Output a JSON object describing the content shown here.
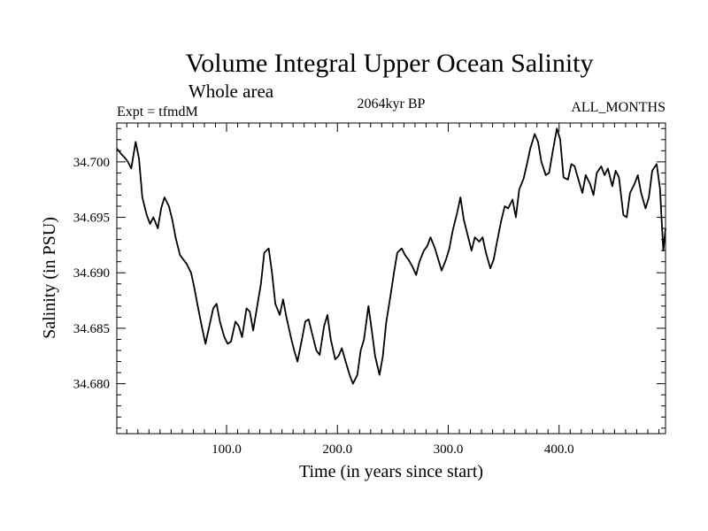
{
  "chart_data": {
    "type": "line",
    "title": "Volume Integral Upper Ocean Salinity",
    "subtitle": "Whole area",
    "left_label": "Expt = tfmdM",
    "center_label": "2064kyr BP",
    "right_label": "ALL_MONTHS",
    "xlabel": "Time (in years since start)",
    "ylabel": "Salinity (in PSU)",
    "xlim": [
      1,
      496
    ],
    "ylim": [
      34.6755,
      34.7035
    ],
    "xticks": [
      100,
      200,
      300,
      400
    ],
    "xtick_labels": [
      "100.0",
      "200.0",
      "300.0",
      "400.0"
    ],
    "yticks": [
      34.68,
      34.685,
      34.69,
      34.695,
      34.7
    ],
    "ytick_labels": [
      "34.680",
      "34.685",
      "34.690",
      "34.695",
      "34.700"
    ],
    "grid": false,
    "series": [
      {
        "name": "salinity",
        "color": "#000000",
        "x": [
          1,
          5,
          8,
          11,
          14,
          18,
          21,
          24,
          28,
          31,
          34,
          38,
          41,
          44,
          48,
          51,
          54,
          58,
          61,
          64,
          68,
          71,
          74,
          78,
          81,
          84,
          88,
          91,
          94,
          98,
          101,
          104,
          108,
          111,
          114,
          118,
          121,
          124,
          128,
          131,
          134,
          138,
          141,
          144,
          148,
          151,
          154,
          158,
          161,
          164,
          168,
          171,
          174,
          178,
          181,
          184,
          188,
          191,
          194,
          198,
          201,
          204,
          208,
          211,
          214,
          218,
          221,
          224,
          228,
          231,
          234,
          238,
          241,
          244,
          248,
          251,
          254,
          258,
          261,
          264,
          268,
          271,
          274,
          278,
          281,
          284,
          288,
          291,
          294,
          298,
          301,
          304,
          308,
          311,
          314,
          318,
          321,
          324,
          328,
          331,
          334,
          338,
          341,
          344,
          348,
          351,
          354,
          358,
          361,
          364,
          368,
          371,
          374,
          378,
          381,
          384,
          388,
          391,
          394,
          398,
          401,
          404,
          408,
          411,
          414,
          418,
          421,
          424,
          428,
          431,
          434,
          438,
          441,
          444,
          448,
          451,
          454,
          458,
          461,
          464,
          468,
          471,
          474,
          478,
          481,
          484,
          488,
          491,
          494,
          496
        ],
        "values": [
          34.7012,
          34.7007,
          34.7004,
          34.7,
          34.6994,
          34.7018,
          34.7003,
          34.6968,
          34.6952,
          34.6944,
          34.695,
          34.694,
          34.6958,
          34.6968,
          34.696,
          34.6948,
          34.6932,
          34.6916,
          34.6912,
          34.6908,
          34.69,
          34.6886,
          34.687,
          34.685,
          34.6836,
          34.685,
          34.6868,
          34.6872,
          34.6856,
          34.6842,
          34.6836,
          34.6838,
          34.6856,
          34.6852,
          34.6842,
          34.6868,
          34.6865,
          34.6848,
          34.6872,
          34.689,
          34.6918,
          34.6922,
          34.69,
          34.6872,
          34.6862,
          34.6876,
          34.686,
          34.6842,
          34.683,
          34.682,
          34.684,
          34.6856,
          34.6858,
          34.6842,
          34.683,
          34.6826,
          34.6852,
          34.6862,
          34.684,
          34.6822,
          34.6825,
          34.6832,
          34.6818,
          34.6808,
          34.68,
          34.6808,
          34.683,
          34.684,
          34.687,
          34.6848,
          34.6825,
          34.6808,
          34.6825,
          34.6855,
          34.688,
          34.69,
          34.6918,
          34.6922,
          34.6916,
          34.6912,
          34.6905,
          34.6898,
          34.691,
          34.692,
          34.6924,
          34.6932,
          34.6922,
          34.6912,
          34.6902,
          34.6912,
          34.6922,
          34.6938,
          34.6954,
          34.6968,
          34.6948,
          34.6932,
          34.692,
          34.6932,
          34.6928,
          34.6932,
          34.6918,
          34.6904,
          34.6912,
          34.6928,
          34.6948,
          34.696,
          34.6958,
          34.6966,
          34.695,
          34.6975,
          34.6985,
          34.6998,
          34.7012,
          34.7025,
          34.7018,
          34.7,
          34.6988,
          34.699,
          34.7008,
          34.703,
          34.702,
          34.6986,
          34.6984,
          34.6998,
          34.6996,
          34.6982,
          34.6972,
          34.6988,
          34.698,
          34.697,
          34.699,
          34.6996,
          34.6988,
          34.6994,
          34.6978,
          34.6992,
          34.6986,
          34.6952,
          34.695,
          34.6972,
          34.698,
          34.6988,
          34.6972,
          34.6958,
          34.6968,
          34.6992,
          34.6998,
          34.6976,
          34.692,
          34.694
        ]
      }
    ]
  }
}
